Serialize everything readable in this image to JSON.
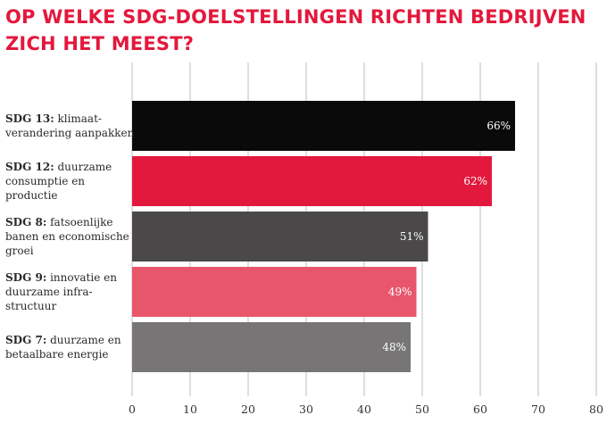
{
  "chart_data": {
    "type": "bar",
    "orientation": "horizontal",
    "title": "OP WELKE SDG-DOELSTELLINGEN RICHTEN BEDRIJVEN ZICH HET MEEST?",
    "categories": [
      {
        "bold": "SDG 13:",
        "lines": [
          " klimaat-",
          "verandering aanpakken"
        ]
      },
      {
        "bold": "SDG 12:",
        "lines": [
          " duurzame",
          "consumptie en",
          "productie"
        ]
      },
      {
        "bold": "SDG 8:",
        "lines": [
          " fatsoenlijke",
          "banen en economische",
          "groei"
        ]
      },
      {
        "bold": "SDG 9:",
        "lines": [
          " innovatie en",
          "duurzame infra-",
          "structuur"
        ]
      },
      {
        "bold": "SDG 7:",
        "lines": [
          " duurzame en",
          "betaalbare energie"
        ]
      }
    ],
    "values": [
      66,
      62,
      51,
      49,
      48
    ],
    "value_labels": [
      "66%",
      "62%",
      "51%",
      "49%",
      "48%"
    ],
    "colors": [
      "#0a0a0a",
      "#e3183d",
      "#4a4849",
      "#e8566b",
      "#777576"
    ],
    "xlim": [
      0,
      80
    ],
    "xticks": [
      0,
      10,
      20,
      30,
      40,
      50,
      60,
      70,
      80
    ],
    "xtick_labels": [
      "0",
      "10",
      "20",
      "30",
      "40",
      "50",
      "60",
      "70",
      "80"
    ],
    "grid": true,
    "xlabel": "",
    "ylabel": ""
  }
}
